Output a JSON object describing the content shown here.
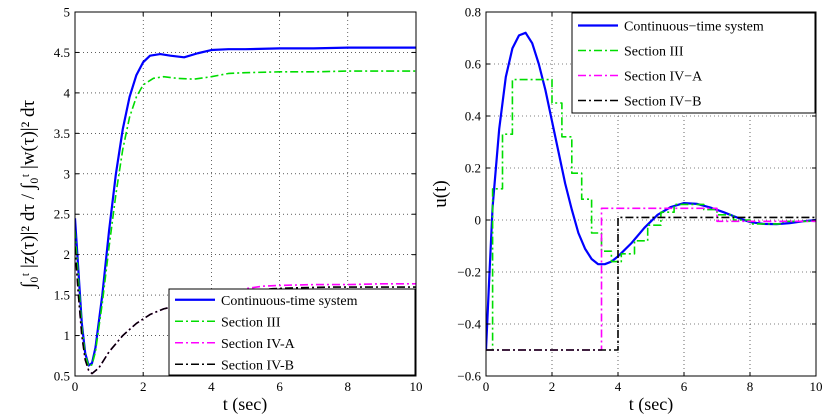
{
  "chart_data": [
    {
      "type": "line",
      "xlabel": "t (sec)",
      "ylabel": "∫₀ᵗ |z(τ)|² dτ / ∫₀ᵗ |w(τ)|² dτ",
      "xlim": [
        0,
        10
      ],
      "ylim": [
        0.5,
        5
      ],
      "xticks": [
        "0",
        "2",
        "4",
        "6",
        "8",
        "10"
      ],
      "yticks": [
        "0.5",
        "1",
        "1.5",
        "2",
        "2.5",
        "3",
        "3.5",
        "4",
        "4.5",
        "5"
      ],
      "grid": true,
      "legend": "bottom-right",
      "series": [
        {
          "name": "Continuous-time system",
          "color": "#0000ff",
          "dash": "solid",
          "points": [
            [
              0,
              2.45
            ],
            [
              0.1,
              1.8
            ],
            [
              0.2,
              1.15
            ],
            [
              0.3,
              0.78
            ],
            [
              0.4,
              0.63
            ],
            [
              0.5,
              0.66
            ],
            [
              0.6,
              0.85
            ],
            [
              0.8,
              1.5
            ],
            [
              1.0,
              2.3
            ],
            [
              1.2,
              3.0
            ],
            [
              1.4,
              3.55
            ],
            [
              1.6,
              3.95
            ],
            [
              1.8,
              4.22
            ],
            [
              2.0,
              4.38
            ],
            [
              2.2,
              4.46
            ],
            [
              2.5,
              4.48
            ],
            [
              2.8,
              4.46
            ],
            [
              3.2,
              4.44
            ],
            [
              3.6,
              4.49
            ],
            [
              4.0,
              4.53
            ],
            [
              4.5,
              4.54
            ],
            [
              5.0,
              4.54
            ],
            [
              6.0,
              4.55
            ],
            [
              7.0,
              4.55
            ],
            [
              8.0,
              4.56
            ],
            [
              9.0,
              4.56
            ],
            [
              10.0,
              4.56
            ]
          ]
        },
        {
          "name": "Section III",
          "color": "#00dd00",
          "dash": "dashdot",
          "points": [
            [
              0,
              2.3
            ],
            [
              0.1,
              1.7
            ],
            [
              0.2,
              1.1
            ],
            [
              0.3,
              0.76
            ],
            [
              0.4,
              0.62
            ],
            [
              0.5,
              0.64
            ],
            [
              0.6,
              0.8
            ],
            [
              0.8,
              1.4
            ],
            [
              1.0,
              2.1
            ],
            [
              1.2,
              2.75
            ],
            [
              1.4,
              3.3
            ],
            [
              1.6,
              3.7
            ],
            [
              1.8,
              3.95
            ],
            [
              2.0,
              4.1
            ],
            [
              2.3,
              4.18
            ],
            [
              2.6,
              4.2
            ],
            [
              3.0,
              4.18
            ],
            [
              3.5,
              4.17
            ],
            [
              4.0,
              4.2
            ],
            [
              4.5,
              4.24
            ],
            [
              5.0,
              4.25
            ],
            [
              6.0,
              4.26
            ],
            [
              7.0,
              4.26
            ],
            [
              8.0,
              4.27
            ],
            [
              9.0,
              4.27
            ],
            [
              10.0,
              4.27
            ]
          ]
        },
        {
          "name": "Section IV-A",
          "color": "#ff00ff",
          "dash": "dashdot",
          "points": [
            [
              0,
              2.1
            ],
            [
              0.1,
              1.5
            ],
            [
              0.2,
              1.0
            ],
            [
              0.3,
              0.7
            ],
            [
              0.4,
              0.57
            ],
            [
              0.5,
              0.53
            ],
            [
              0.7,
              0.6
            ],
            [
              1.0,
              0.8
            ],
            [
              1.4,
              1.0
            ],
            [
              1.8,
              1.15
            ],
            [
              2.2,
              1.26
            ],
            [
              2.6,
              1.33
            ],
            [
              3.0,
              1.37
            ],
            [
              3.5,
              1.39
            ],
            [
              3.9,
              1.39
            ],
            [
              4.2,
              1.45
            ],
            [
              4.6,
              1.52
            ],
            [
              5.0,
              1.58
            ],
            [
              5.5,
              1.61
            ],
            [
              6.0,
              1.62
            ],
            [
              7.0,
              1.63
            ],
            [
              8.0,
              1.63
            ],
            [
              9.0,
              1.64
            ],
            [
              10.0,
              1.64
            ]
          ]
        },
        {
          "name": "Section IV-B",
          "color": "#000000",
          "dash": "dashdot",
          "points": [
            [
              0,
              2.1
            ],
            [
              0.1,
              1.5
            ],
            [
              0.2,
              1.0
            ],
            [
              0.3,
              0.7
            ],
            [
              0.4,
              0.57
            ],
            [
              0.5,
              0.53
            ],
            [
              0.7,
              0.6
            ],
            [
              1.0,
              0.8
            ],
            [
              1.4,
              1.0
            ],
            [
              1.8,
              1.15
            ],
            [
              2.2,
              1.26
            ],
            [
              2.6,
              1.33
            ],
            [
              3.0,
              1.37
            ],
            [
              3.5,
              1.39
            ],
            [
              4.0,
              1.39
            ],
            [
              4.3,
              1.44
            ],
            [
              4.7,
              1.5
            ],
            [
              5.2,
              1.55
            ],
            [
              5.8,
              1.58
            ],
            [
              6.5,
              1.59
            ],
            [
              7.5,
              1.6
            ],
            [
              8.5,
              1.6
            ],
            [
              10.0,
              1.6
            ]
          ]
        }
      ]
    },
    {
      "type": "line",
      "xlabel": "t (sec)",
      "ylabel": "u(t)",
      "xlim": [
        0,
        10
      ],
      "ylim": [
        -0.6,
        0.8
      ],
      "xticks": [
        "0",
        "2",
        "4",
        "6",
        "8",
        "10"
      ],
      "yticks": [
        "−0.6",
        "−0.4",
        "−0.2",
        "0",
        "0.2",
        "0.4",
        "0.6",
        "0.8"
      ],
      "grid": true,
      "legend": "top-right",
      "series": [
        {
          "name": "Continuous−time system",
          "color": "#0000ff",
          "dash": "solid",
          "points": [
            [
              0,
              -0.5
            ],
            [
              0.1,
              -0.22
            ],
            [
              0.2,
              0.05
            ],
            [
              0.4,
              0.35
            ],
            [
              0.6,
              0.55
            ],
            [
              0.8,
              0.66
            ],
            [
              1.0,
              0.71
            ],
            [
              1.2,
              0.72
            ],
            [
              1.4,
              0.68
            ],
            [
              1.6,
              0.6
            ],
            [
              1.8,
              0.5
            ],
            [
              2.0,
              0.38
            ],
            [
              2.2,
              0.26
            ],
            [
              2.4,
              0.14
            ],
            [
              2.6,
              0.04
            ],
            [
              2.8,
              -0.05
            ],
            [
              3.0,
              -0.11
            ],
            [
              3.2,
              -0.15
            ],
            [
              3.4,
              -0.17
            ],
            [
              3.6,
              -0.17
            ],
            [
              3.8,
              -0.16
            ],
            [
              4.0,
              -0.14
            ],
            [
              4.4,
              -0.09
            ],
            [
              4.8,
              -0.03
            ],
            [
              5.2,
              0.02
            ],
            [
              5.6,
              0.05
            ],
            [
              6.0,
              0.065
            ],
            [
              6.4,
              0.062
            ],
            [
              6.8,
              0.048
            ],
            [
              7.2,
              0.03
            ],
            [
              7.6,
              0.01
            ],
            [
              8.0,
              -0.008
            ],
            [
              8.4,
              -0.015
            ],
            [
              8.8,
              -0.016
            ],
            [
              9.2,
              -0.012
            ],
            [
              9.6,
              -0.005
            ],
            [
              10.0,
              0.0
            ]
          ]
        },
        {
          "name": "Section III",
          "color": "#00dd00",
          "dash": "dashdot",
          "points": [
            [
              0,
              -0.5
            ],
            [
              0.2,
              -0.5
            ],
            [
              0.2,
              0.12
            ],
            [
              0.5,
              0.12
            ],
            [
              0.5,
              0.33
            ],
            [
              0.8,
              0.33
            ],
            [
              0.8,
              0.54
            ],
            [
              2.0,
              0.54
            ],
            [
              2.0,
              0.45
            ],
            [
              2.3,
              0.45
            ],
            [
              2.3,
              0.32
            ],
            [
              2.6,
              0.32
            ],
            [
              2.6,
              0.18
            ],
            [
              2.9,
              0.18
            ],
            [
              2.9,
              0.08
            ],
            [
              3.2,
              0.08
            ],
            [
              3.2,
              -0.05
            ],
            [
              3.5,
              -0.05
            ],
            [
              3.5,
              -0.12
            ],
            [
              3.8,
              -0.12
            ],
            [
              3.8,
              -0.16
            ],
            [
              4.1,
              -0.16
            ],
            [
              4.1,
              -0.13
            ],
            [
              4.5,
              -0.13
            ],
            [
              4.5,
              -0.08
            ],
            [
              4.9,
              -0.08
            ],
            [
              4.9,
              -0.02
            ],
            [
              5.3,
              -0.02
            ],
            [
              5.3,
              0.03
            ],
            [
              5.7,
              0.03
            ],
            [
              5.7,
              0.06
            ],
            [
              6.6,
              0.06
            ],
            [
              6.6,
              0.04
            ],
            [
              7.0,
              0.04
            ],
            [
              7.0,
              0.02
            ],
            [
              7.5,
              0.02
            ],
            [
              7.5,
              0.0
            ],
            [
              8.0,
              0.0
            ],
            [
              8.0,
              -0.015
            ],
            [
              9.0,
              -0.015
            ],
            [
              9.0,
              -0.005
            ],
            [
              10.0,
              -0.005
            ]
          ]
        },
        {
          "name": "Section IV−A",
          "color": "#ff00ff",
          "dash": "dashdot",
          "points": [
            [
              0,
              -0.5
            ],
            [
              3.5,
              -0.5
            ],
            [
              3.5,
              0.045
            ],
            [
              7.0,
              0.045
            ],
            [
              7.0,
              -0.005
            ],
            [
              10.0,
              -0.005
            ]
          ]
        },
        {
          "name": "Section IV−B",
          "color": "#000000",
          "dash": "dashdot",
          "points": [
            [
              0,
              -0.5
            ],
            [
              4.0,
              -0.5
            ],
            [
              4.0,
              0.01
            ],
            [
              10.0,
              0.01
            ]
          ]
        }
      ]
    }
  ]
}
